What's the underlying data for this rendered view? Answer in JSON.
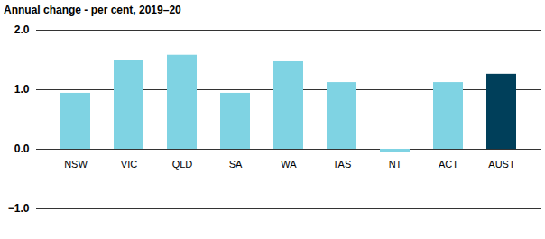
{
  "chart_data": {
    "type": "bar",
    "title": "Annual change - per cent, 2019–20",
    "categories": [
      "NSW",
      "VIC",
      "QLD",
      "SA",
      "WA",
      "TAS",
      "NT",
      "ACT",
      "AUST"
    ],
    "values": [
      0.94,
      1.49,
      1.58,
      0.94,
      1.47,
      1.12,
      -0.06,
      1.12,
      1.26
    ],
    "colors": [
      "#7fd3e3",
      "#7fd3e3",
      "#7fd3e3",
      "#7fd3e3",
      "#7fd3e3",
      "#7fd3e3",
      "#7fd3e3",
      "#7fd3e3",
      "#003f5a"
    ],
    "ylim": [
      -1,
      2
    ],
    "yticks": [
      -1,
      0,
      1,
      2
    ],
    "grid": true
  }
}
